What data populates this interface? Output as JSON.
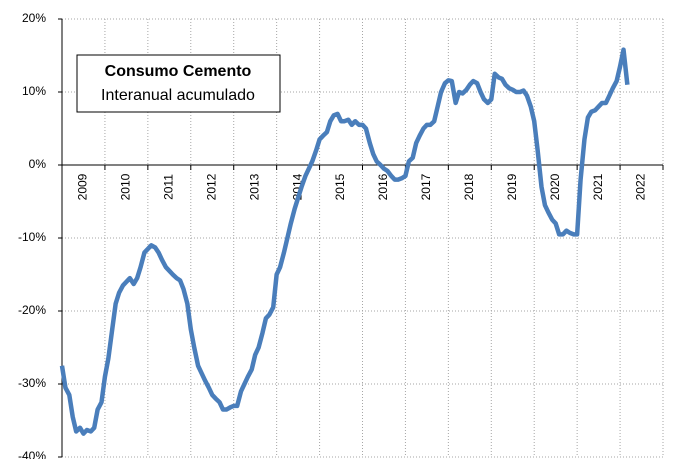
{
  "chart_data": {
    "type": "line",
    "title": "Consumo Cemento",
    "subtitle": "Interanual acumulado",
    "x": [
      2009,
      2009.08,
      2009.17,
      2009.25,
      2009.33,
      2009.42,
      2009.5,
      2009.58,
      2009.67,
      2009.75,
      2009.83,
      2009.92,
      2010,
      2010.08,
      2010.17,
      2010.25,
      2010.33,
      2010.42,
      2010.5,
      2010.58,
      2010.67,
      2010.75,
      2010.83,
      2010.92,
      2011,
      2011.08,
      2011.17,
      2011.25,
      2011.33,
      2011.42,
      2011.5,
      2011.58,
      2011.67,
      2011.75,
      2011.83,
      2011.92,
      2012,
      2012.08,
      2012.17,
      2012.25,
      2012.33,
      2012.42,
      2012.5,
      2012.58,
      2012.67,
      2012.75,
      2012.83,
      2012.92,
      2013,
      2013.08,
      2013.17,
      2013.25,
      2013.33,
      2013.42,
      2013.5,
      2013.58,
      2013.67,
      2013.75,
      2013.83,
      2013.92,
      2014,
      2014.08,
      2014.17,
      2014.25,
      2014.33,
      2014.42,
      2014.5,
      2014.58,
      2014.67,
      2014.75,
      2014.83,
      2014.92,
      2015,
      2015.08,
      2015.17,
      2015.25,
      2015.33,
      2015.42,
      2015.5,
      2015.58,
      2015.67,
      2015.75,
      2015.83,
      2015.92,
      2016,
      2016.08,
      2016.17,
      2016.25,
      2016.33,
      2016.42,
      2016.5,
      2016.58,
      2016.67,
      2016.75,
      2016.83,
      2016.92,
      2017,
      2017.08,
      2017.17,
      2017.25,
      2017.33,
      2017.42,
      2017.5,
      2017.58,
      2017.67,
      2017.75,
      2017.83,
      2017.92,
      2018,
      2018.08,
      2018.17,
      2018.25,
      2018.33,
      2018.42,
      2018.5,
      2018.58,
      2018.67,
      2018.75,
      2018.83,
      2018.92,
      2019,
      2019.08,
      2019.17,
      2019.25,
      2019.33,
      2019.42,
      2019.5,
      2019.58,
      2019.67,
      2019.75,
      2019.83,
      2019.92,
      2020,
      2020.08,
      2020.17,
      2020.25,
      2020.33,
      2020.42,
      2020.5,
      2020.58,
      2020.67,
      2020.75,
      2020.83,
      2020.92,
      2021,
      2021.08,
      2021.17,
      2021.25,
      2021.33,
      2021.42,
      2021.5,
      2021.58,
      2021.67,
      2021.75,
      2021.83,
      2021.92,
      2022,
      2022.08,
      2022.17
    ],
    "series": [
      {
        "name": "Consumo Cemento",
        "color": "#4a7ebb",
        "values": [
          -27.5,
          -30.5,
          -31.5,
          -34.5,
          -36.5,
          -36,
          -36.8,
          -36.3,
          -36.5,
          -36,
          -33.5,
          -32.5,
          -29,
          -26.5,
          -22.5,
          -19,
          -17.5,
          -16.5,
          -16,
          -15.5,
          -16.3,
          -15.5,
          -14,
          -12,
          -11.5,
          -11,
          -11.3,
          -12,
          -13,
          -14,
          -14.5,
          -15,
          -15.5,
          -15.8,
          -17,
          -19,
          -22.5,
          -25,
          -27.5,
          -28.5,
          -29.5,
          -30.5,
          -31.5,
          -32,
          -32.5,
          -33.5,
          -33.5,
          -33.2,
          -33,
          -33,
          -31,
          -30,
          -29,
          -28,
          -26,
          -25,
          -23,
          -21,
          -20.5,
          -19.5,
          -15,
          -14,
          -12,
          -10,
          -8,
          -6,
          -4.5,
          -3,
          -1.5,
          -0.5,
          0.5,
          2,
          3.5,
          4,
          4.5,
          6,
          6.8,
          7,
          6,
          6,
          6.2,
          5.5,
          6,
          5.5,
          5.5,
          5,
          3,
          1.5,
          0.5,
          0,
          -0.5,
          -0.8,
          -1.5,
          -2,
          -2,
          -1.8,
          -1.5,
          0.5,
          1,
          3,
          4,
          5,
          5.5,
          5.5,
          6,
          8,
          10,
          11.2,
          11.6,
          11.5,
          8.5,
          10,
          9.8,
          10.3,
          11,
          11.5,
          11.2,
          10,
          9,
          8.5,
          9,
          12.5,
          12,
          11.8,
          11,
          10.5,
          10.3,
          10,
          10,
          10.2,
          9.5,
          8,
          6,
          2,
          -3,
          -5.5,
          -6.5,
          -7.5,
          -8,
          -9.5,
          -9.5,
          -9,
          -9.3,
          -9.5,
          -9.5,
          -2,
          3.5,
          6.5,
          7.3,
          7.5,
          8,
          8.5,
          8.5,
          9.5,
          10.5,
          11.5,
          13.5,
          15.8,
          11
        ]
      }
    ],
    "xlim": [
      2009,
      2023
    ],
    "xgrid": [
      2009,
      2010,
      2011,
      2012,
      2013,
      2014,
      2015,
      2016,
      2017,
      2018,
      2019,
      2020,
      2021,
      2022,
      2023
    ],
    "xticks": [
      {
        "value": 2009.5,
        "label": "2009"
      },
      {
        "value": 2010.5,
        "label": "2010"
      },
      {
        "value": 2011.5,
        "label": "2011"
      },
      {
        "value": 2012.5,
        "label": "2012"
      },
      {
        "value": 2013.5,
        "label": "2013"
      },
      {
        "value": 2014.5,
        "label": "2014"
      },
      {
        "value": 2015.5,
        "label": "2015"
      },
      {
        "value": 2016.5,
        "label": "2016"
      },
      {
        "value": 2017.5,
        "label": "2017"
      },
      {
        "value": 2018.5,
        "label": "2018"
      },
      {
        "value": 2019.5,
        "label": "2019"
      },
      {
        "value": 2020.5,
        "label": "2020"
      },
      {
        "value": 2021.5,
        "label": "2021"
      },
      {
        "value": 2022.5,
        "label": "2022"
      }
    ],
    "ylim": [
      -40,
      20
    ],
    "yticks": [
      {
        "value": 20,
        "label": "20%"
      },
      {
        "value": 10,
        "label": "10%"
      },
      {
        "value": 0,
        "label": "0%"
      },
      {
        "value": -10,
        "label": "-10%"
      },
      {
        "value": -20,
        "label": "-20%"
      },
      {
        "value": -30,
        "label": "-30%"
      },
      {
        "value": -40,
        "label": "-40%"
      }
    ],
    "grid": true
  }
}
